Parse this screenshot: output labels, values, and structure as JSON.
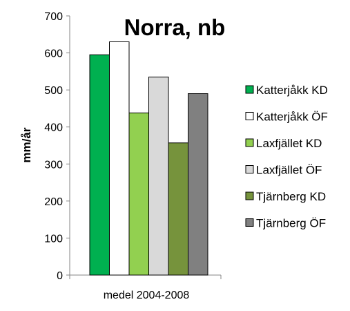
{
  "chart_data": {
    "type": "bar",
    "title": "Norra, nb",
    "xlabel": "",
    "ylabel": "mm/år",
    "ylim": [
      0,
      700
    ],
    "yticks": [
      0,
      100,
      200,
      300,
      400,
      500,
      600,
      700
    ],
    "categories": [
      "medel 2004-2008"
    ],
    "grid": false,
    "legend_position": "right",
    "series": [
      {
        "name": "Katterjåkk KD",
        "values": [
          595
        ],
        "color": "#00b050"
      },
      {
        "name": "Katterjåkk ÖF",
        "values": [
          630
        ],
        "color": "#ffffff"
      },
      {
        "name": "Laxfjället KD",
        "values": [
          438
        ],
        "color": "#92d050"
      },
      {
        "name": "Laxfjället ÖF",
        "values": [
          535
        ],
        "color": "#d9d9d9"
      },
      {
        "name": "Tjärnberg KD",
        "values": [
          357
        ],
        "color": "#76933c"
      },
      {
        "name": "Tjärnberg ÖF",
        "values": [
          490
        ],
        "color": "#808080"
      }
    ]
  }
}
